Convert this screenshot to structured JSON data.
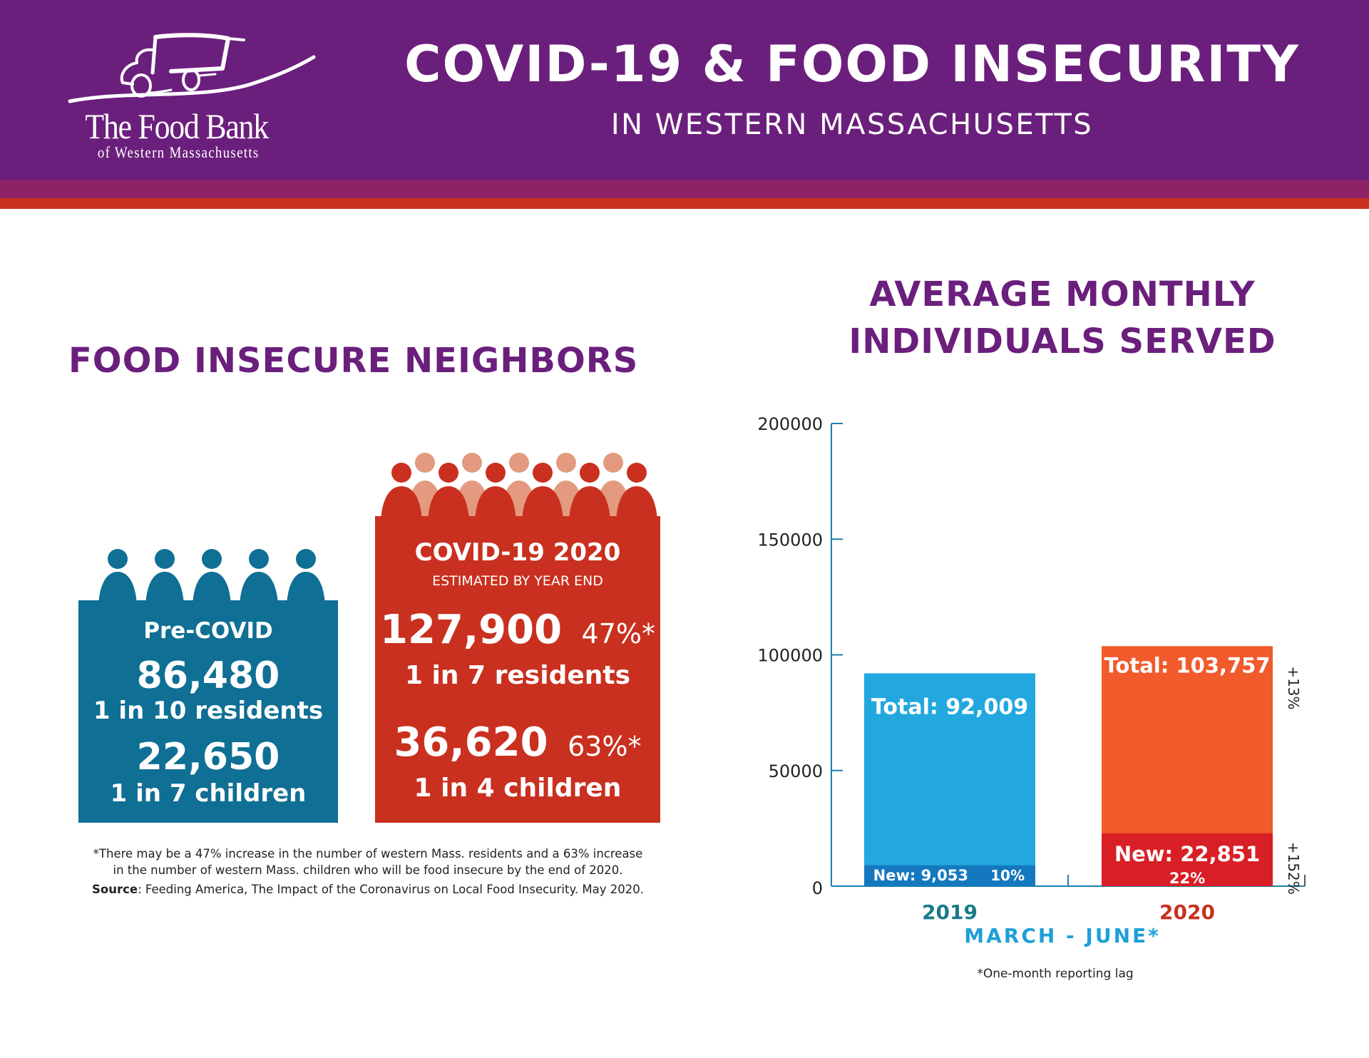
{
  "header": {
    "logo_name": "The Food Bank",
    "logo_sub": "of Western Massachusetts",
    "title": "COVID-19 & FOOD INSECURITY",
    "subtitle": "IN WESTERN MASSACHUSETTS"
  },
  "colors": {
    "purple": "#6b1f7c",
    "magenta_band": "#8b2366",
    "red_band": "#c9301f",
    "teal": "#0f6f94",
    "covid_red": "#c9301f",
    "covid_person_light": "#e39a7e",
    "bar_2019_total": "#22a8df",
    "bar_2019_new": "#1478bf",
    "bar_2020_total": "#f15a2b",
    "bar_2020_new": "#d91f26",
    "axis": "#1b7fb0",
    "label_2019": "#1a7b8a",
    "label_2020": "#c9301f",
    "xlabel": "#1f9fd8"
  },
  "left": {
    "title": "FOOD INSECURE NEIGHBORS",
    "pre_covid": {
      "heading": "Pre-COVID",
      "residents_count": "86,480",
      "residents_ratio": "1 in 10 residents",
      "children_count": "22,650",
      "children_ratio": "1 in 7 children"
    },
    "covid": {
      "heading": "COVID-19 2020",
      "subheading": "ESTIMATED BY YEAR END",
      "residents_count": "127,900",
      "residents_increase": "47%*",
      "residents_ratio": "1 in 7 residents",
      "children_count": "36,620",
      "children_increase": "63%*",
      "children_ratio": "1 in 4 children"
    },
    "footnote_line1": "*There may be a 47% increase in the number of western Mass. residents and a 63% increase",
    "footnote_line2": "in the number of western Mass. children who will be food insecure by the end of 2020.",
    "source_label": "Source",
    "source_text": ": Feeding America, The Impact of the Coronavirus on Local Food Insecurity. May 2020."
  },
  "chart_data": {
    "type": "bar",
    "title": "AVERAGE MONTHLY INDIVIDUALS SERVED",
    "xlabel": "MARCH - JUNE*",
    "ylabel": "",
    "note": "*One-month reporting lag",
    "ylim": [
      0,
      200000
    ],
    "yticks": [
      0,
      50000,
      100000,
      150000,
      200000
    ],
    "ytick_labels": [
      "0",
      "50000",
      "100000",
      "150000",
      "200000"
    ],
    "grid": false,
    "categories": [
      "2019",
      "2020"
    ],
    "series": [
      {
        "name": "Total",
        "values": [
          92009,
          103757
        ]
      },
      {
        "name": "New",
        "values": [
          9053,
          22851
        ]
      }
    ],
    "bar_labels": [
      {
        "total": "Total: 92,009",
        "new": "New: 9,053",
        "new_pct": "10%"
      },
      {
        "total": "Total: 103,757",
        "new": "New: 22,851",
        "new_pct": "22%"
      }
    ],
    "annotations": {
      "total_change": "+13%",
      "new_change": "+152%"
    }
  }
}
